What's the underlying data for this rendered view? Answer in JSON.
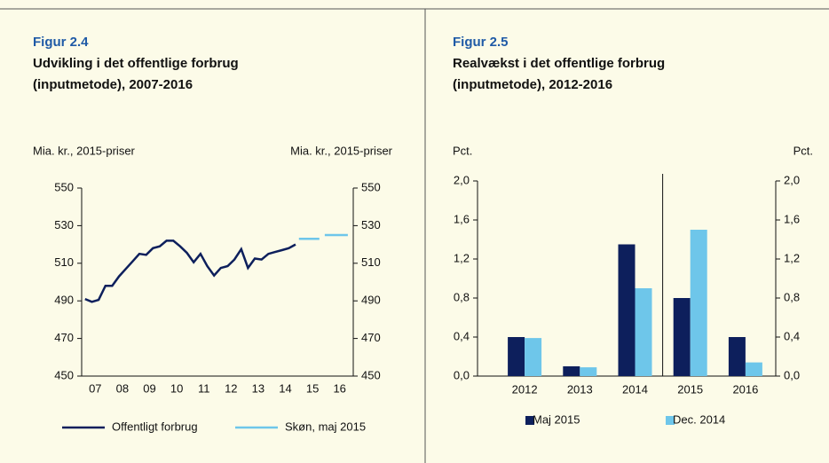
{
  "chart_data": [
    {
      "type": "line",
      "figure": "Figur 2.4",
      "title": [
        "Udvikling i det offentlige forbrug",
        "(inputmetode), 2007-2016"
      ],
      "ylabel": "Mia. kr., 2015-priser",
      "y2label": "Mia. kr., 2015-priser",
      "xlim": [
        2007,
        2017
      ],
      "xticks": [
        {
          "value": 2007.5,
          "label": "07"
        },
        {
          "value": 2008.5,
          "label": "08"
        },
        {
          "value": 2009.5,
          "label": "09"
        },
        {
          "value": 2010.5,
          "label": "10"
        },
        {
          "value": 2011.5,
          "label": "11"
        },
        {
          "value": 2012.5,
          "label": "12"
        },
        {
          "value": 2013.5,
          "label": "13"
        },
        {
          "value": 2014.5,
          "label": "14"
        },
        {
          "value": 2015.5,
          "label": "15"
        },
        {
          "value": 2016.5,
          "label": "16"
        }
      ],
      "ylim": [
        450,
        550
      ],
      "yticks": [
        450,
        470,
        490,
        510,
        530,
        550
      ],
      "series": [
        {
          "name": "Offentligt forbrug",
          "color": "#0d1f5c",
          "x": [
            2007.125,
            2007.375,
            2007.625,
            2007.875,
            2008.125,
            2008.375,
            2008.625,
            2008.875,
            2009.125,
            2009.375,
            2009.625,
            2009.875,
            2010.125,
            2010.375,
            2010.625,
            2010.875,
            2011.125,
            2011.375,
            2011.625,
            2011.875,
            2012.125,
            2012.375,
            2012.625,
            2012.875,
            2013.125,
            2013.375,
            2013.625,
            2013.875,
            2014.125,
            2014.375,
            2014.625,
            2014.875
          ],
          "values": [
            491,
            489.5,
            490.5,
            498,
            498,
            503,
            507,
            511,
            515,
            514.5,
            518,
            519,
            522,
            522,
            519,
            515.5,
            510.5,
            515,
            508.5,
            503.5,
            507.5,
            508.5,
            512,
            517.5,
            507.5,
            512.5,
            512,
            515,
            516,
            517,
            518,
            520
          ]
        },
        {
          "name": "Skøn, maj 2015",
          "color": "#6ec6ea",
          "x": [
            2015.0,
            2015.75,
            2015.9,
            2015.95,
            2016.8
          ],
          "values": [
            523,
            523,
            null,
            525,
            525
          ]
        }
      ]
    },
    {
      "type": "bar",
      "figure": "Figur 2.5",
      "title": [
        "Realvækst i det offentlige forbrug",
        "(inputmetode), 2012-2016"
      ],
      "ylabel": "Pct.",
      "y2label": "Pct.",
      "categories": [
        "2012",
        "2013",
        "2014",
        "2015",
        "2016"
      ],
      "ylim": [
        0,
        2
      ],
      "yticks": [
        {
          "value": 0,
          "label": "0,0"
        },
        {
          "value": 0.4,
          "label": "0,4"
        },
        {
          "value": 0.8,
          "label": "0,8"
        },
        {
          "value": 1.2,
          "label": "1,2"
        },
        {
          "value": 1.6,
          "label": "1,6"
        },
        {
          "value": 2,
          "label": "2,0"
        }
      ],
      "series": [
        {
          "name": "Maj 2015",
          "color": "#0d1f5c",
          "values": [
            0.4,
            0.1,
            1.35,
            0.8,
            0.4
          ]
        },
        {
          "name": "Dec. 2014",
          "color": "#6ec6ea",
          "values": [
            0.39,
            0.09,
            0.9,
            1.5,
            0.14
          ]
        }
      ]
    }
  ]
}
